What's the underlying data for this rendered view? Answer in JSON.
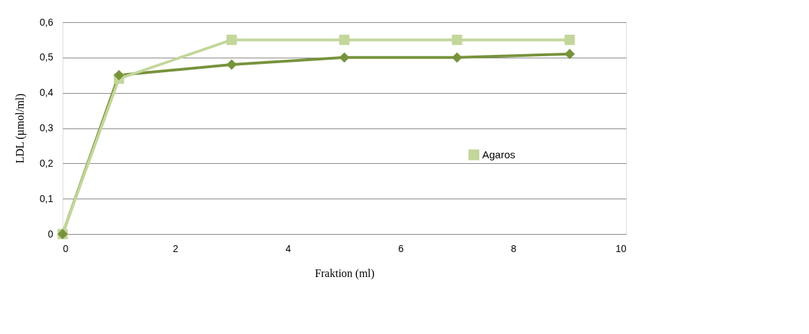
{
  "chart_data": {
    "type": "line",
    "xlabel": "Fraktion (ml)",
    "ylabel": "LDL (µmol/ml)",
    "x": [
      0,
      1,
      3,
      5,
      7,
      9
    ],
    "series": [
      {
        "color": "#77933c",
        "marker": "diamond",
        "values": [
          0,
          0.45,
          0.48,
          0.5,
          0.5,
          0.51
        ]
      },
      {
        "name": "Agaros",
        "color": "#c3d69b",
        "marker": "square",
        "values": [
          0,
          0.44,
          0.55,
          0.55,
          0.55,
          0.55
        ]
      }
    ],
    "xlim": [
      0,
      10
    ],
    "xticks": [
      0,
      2,
      4,
      6,
      8,
      10
    ],
    "ylim": [
      0,
      0.6
    ],
    "yticks": [
      0,
      {
        "value": 0.1,
        "label": "0,1"
      },
      {
        "value": 0.2,
        "label": "0,2"
      },
      {
        "value": 0.3,
        "label": "0,3"
      },
      {
        "value": 0.4,
        "label": "0,4"
      },
      {
        "value": 0.5,
        "label": "0,5"
      },
      {
        "value": 0.6,
        "label": "0,6"
      }
    ],
    "grid": "y",
    "legend": "right",
    "line_style": "solid"
  }
}
